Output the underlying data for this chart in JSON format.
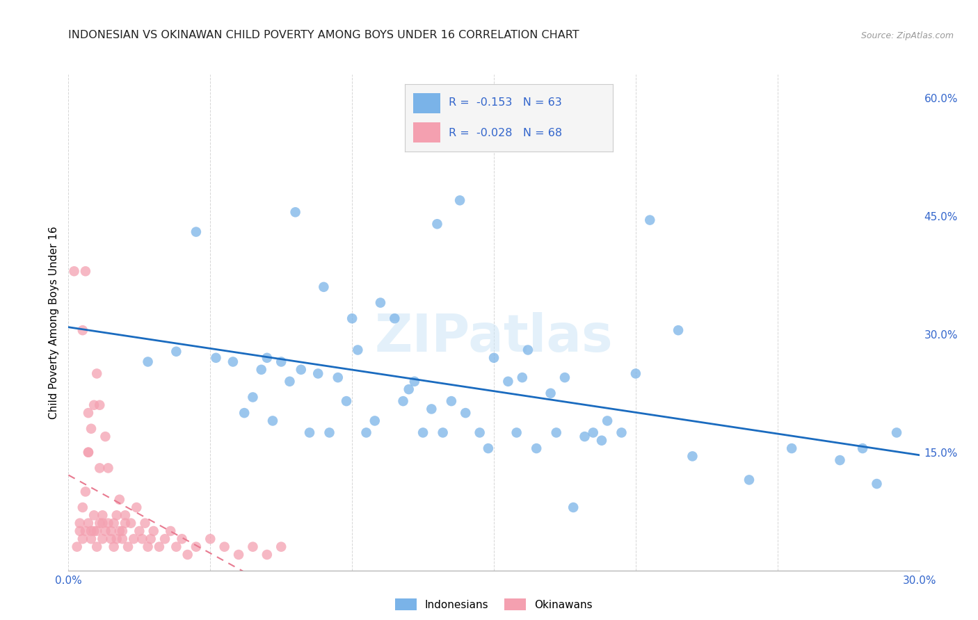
{
  "title": "INDONESIAN VS OKINAWAN CHILD POVERTY AMONG BOYS UNDER 16 CORRELATION CHART",
  "source": "Source: ZipAtlas.com",
  "ylabel": "Child Poverty Among Boys Under 16",
  "xlim": [
    0.0,
    0.3
  ],
  "ylim": [
    0.0,
    0.63
  ],
  "xticks": [
    0.0,
    0.05,
    0.1,
    0.15,
    0.2,
    0.25,
    0.3
  ],
  "xtick_labels": [
    "0.0%",
    "",
    "",
    "",
    "",
    "",
    "30.0%"
  ],
  "yticks_right": [
    0.15,
    0.3,
    0.45,
    0.6
  ],
  "ytick_labels_right": [
    "15.0%",
    "30.0%",
    "45.0%",
    "60.0%"
  ],
  "indonesian_color": "#7ab3e8",
  "okinawan_color": "#f4a0b0",
  "indonesian_line_color": "#1a6bbf",
  "okinawan_line_color": "#e87a90",
  "indonesian_R": -0.153,
  "indonesian_N": 63,
  "okinawan_R": -0.028,
  "okinawan_N": 68,
  "legend_label_indonesian": "Indonesians",
  "legend_label_okinawan": "Okinawans",
  "watermark": "ZIPatlas",
  "indonesian_x": [
    0.028,
    0.038,
    0.045,
    0.052,
    0.058,
    0.062,
    0.065,
    0.068,
    0.07,
    0.072,
    0.075,
    0.078,
    0.08,
    0.082,
    0.085,
    0.088,
    0.09,
    0.092,
    0.095,
    0.098,
    0.1,
    0.102,
    0.105,
    0.108,
    0.11,
    0.115,
    0.118,
    0.12,
    0.122,
    0.125,
    0.128,
    0.13,
    0.132,
    0.135,
    0.138,
    0.14,
    0.145,
    0.148,
    0.15,
    0.155,
    0.158,
    0.16,
    0.162,
    0.165,
    0.17,
    0.172,
    0.175,
    0.178,
    0.182,
    0.185,
    0.188,
    0.19,
    0.195,
    0.2,
    0.205,
    0.215,
    0.22,
    0.24,
    0.255,
    0.272,
    0.28,
    0.285,
    0.292
  ],
  "indonesian_y": [
    0.265,
    0.278,
    0.43,
    0.27,
    0.265,
    0.2,
    0.22,
    0.255,
    0.27,
    0.19,
    0.265,
    0.24,
    0.455,
    0.255,
    0.175,
    0.25,
    0.36,
    0.175,
    0.245,
    0.215,
    0.32,
    0.28,
    0.175,
    0.19,
    0.34,
    0.32,
    0.215,
    0.23,
    0.24,
    0.175,
    0.205,
    0.44,
    0.175,
    0.215,
    0.47,
    0.2,
    0.175,
    0.155,
    0.27,
    0.24,
    0.175,
    0.245,
    0.28,
    0.155,
    0.225,
    0.175,
    0.245,
    0.08,
    0.17,
    0.175,
    0.165,
    0.19,
    0.175,
    0.25,
    0.445,
    0.305,
    0.145,
    0.115,
    0.155,
    0.14,
    0.155,
    0.11,
    0.175
  ],
  "okinawan_x": [
    0.002,
    0.003,
    0.004,
    0.004,
    0.005,
    0.005,
    0.006,
    0.006,
    0.007,
    0.007,
    0.007,
    0.008,
    0.008,
    0.008,
    0.009,
    0.009,
    0.009,
    0.01,
    0.01,
    0.01,
    0.011,
    0.011,
    0.011,
    0.012,
    0.012,
    0.012,
    0.013,
    0.013,
    0.014,
    0.014,
    0.015,
    0.015,
    0.016,
    0.016,
    0.017,
    0.017,
    0.018,
    0.018,
    0.019,
    0.019,
    0.02,
    0.02,
    0.021,
    0.022,
    0.023,
    0.024,
    0.025,
    0.026,
    0.027,
    0.028,
    0.029,
    0.03,
    0.032,
    0.034,
    0.036,
    0.038,
    0.04,
    0.042,
    0.045,
    0.05,
    0.055,
    0.06,
    0.065,
    0.07,
    0.075,
    0.005,
    0.006,
    0.007
  ],
  "okinawan_y": [
    0.38,
    0.03,
    0.05,
    0.06,
    0.04,
    0.08,
    0.05,
    0.1,
    0.15,
    0.06,
    0.2,
    0.04,
    0.05,
    0.18,
    0.07,
    0.05,
    0.21,
    0.25,
    0.03,
    0.05,
    0.13,
    0.06,
    0.21,
    0.04,
    0.07,
    0.06,
    0.17,
    0.05,
    0.06,
    0.13,
    0.04,
    0.05,
    0.03,
    0.06,
    0.04,
    0.07,
    0.05,
    0.09,
    0.04,
    0.05,
    0.06,
    0.07,
    0.03,
    0.06,
    0.04,
    0.08,
    0.05,
    0.04,
    0.06,
    0.03,
    0.04,
    0.05,
    0.03,
    0.04,
    0.05,
    0.03,
    0.04,
    0.02,
    0.03,
    0.04,
    0.03,
    0.02,
    0.03,
    0.02,
    0.03,
    0.305,
    0.38,
    0.15
  ]
}
